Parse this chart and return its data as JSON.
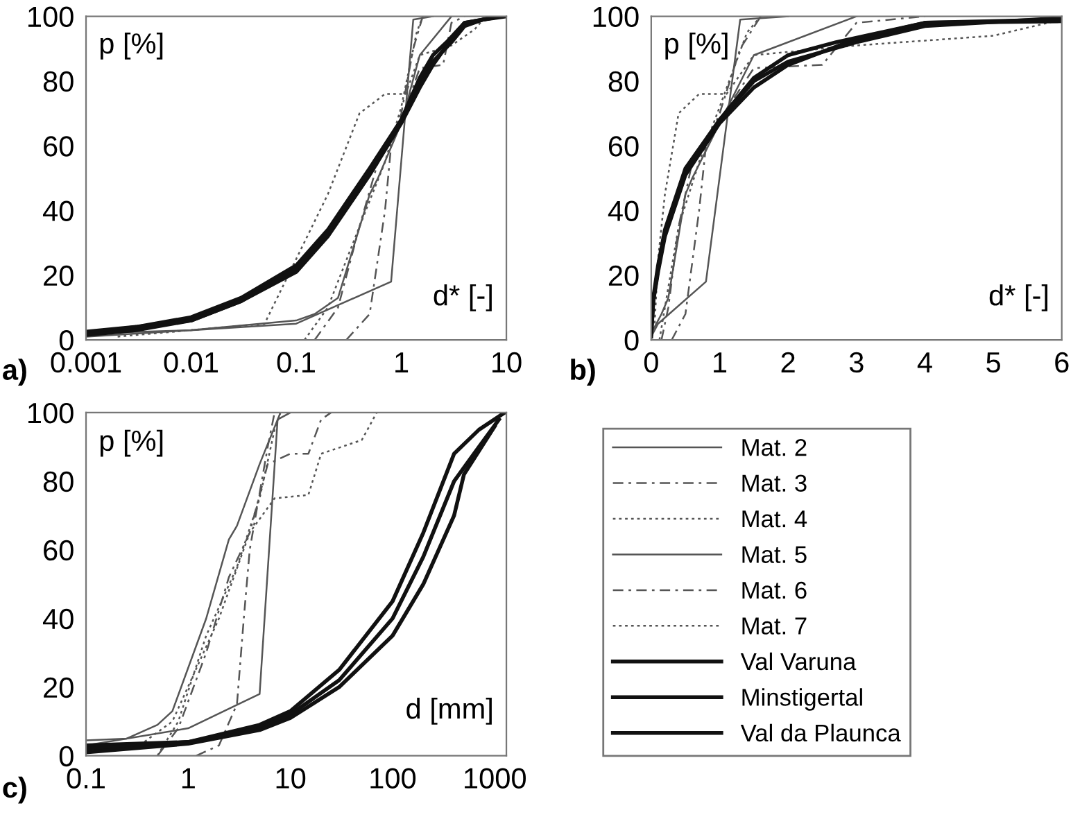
{
  "chart_data": [
    {
      "type": "line",
      "title": "a)",
      "xlabel": "d* [-]",
      "ylabel": "p [%]",
      "log": "x",
      "xlim": [
        0.001,
        10
      ],
      "xticks": [
        {
          "value": 0.001,
          "label": "0.001"
        },
        {
          "value": 0.01,
          "label": "0.01"
        },
        {
          "value": 0.1,
          "label": "0.1"
        },
        {
          "value": 1,
          "label": "1"
        },
        {
          "value": 10,
          "label": "10"
        }
      ],
      "ylim": [
        0,
        100
      ],
      "yticks": [
        0,
        20,
        40,
        60,
        80,
        100
      ],
      "grid": false,
      "marker": "none",
      "series": [
        {
          "color": "#555555",
          "line_style": "solid",
          "x": [
            0.001,
            0.1,
            0.8,
            1.3,
            2
          ],
          "values": [
            1,
            5,
            18,
            99,
            100
          ]
        },
        {
          "color": "#555555",
          "line_style": "dashed",
          "x": [
            0.15,
            0.25,
            0.4,
            0.6,
            1,
            1.5,
            2.5,
            3,
            4
          ],
          "values": [
            0,
            10,
            35,
            55,
            68,
            84,
            85,
            98,
            100
          ]
        },
        {
          "color": "#555555",
          "line_style": "dotted",
          "x": [
            0.12,
            0.2,
            0.4,
            0.7,
            1,
            1.4,
            1.6
          ],
          "values": [
            0,
            10,
            35,
            55,
            72,
            95,
            100
          ]
        },
        {
          "color": "#555555",
          "line_style": "solid",
          "x": [
            0.001,
            0.01,
            0.1,
            0.15,
            0.25,
            0.5,
            0.6,
            1,
            1.5,
            3
          ],
          "values": [
            2,
            3,
            6,
            8,
            13,
            45,
            50,
            67,
            88,
            100
          ]
        },
        {
          "color": "#555555",
          "line_style": "dashed",
          "x": [
            0.3,
            0.5,
            0.7,
            0.8,
            1,
            1.3,
            1.6
          ],
          "values": [
            0,
            8,
            40,
            60,
            70,
            90,
            100
          ]
        },
        {
          "color": "#555555",
          "line_style": "dotted",
          "x": [
            0.002,
            0.05,
            0.1,
            0.2,
            0.4,
            0.7,
            1.1,
            1.5,
            3,
            5,
            6,
            10
          ],
          "values": [
            1,
            5,
            25,
            45,
            70,
            76,
            76,
            88,
            91,
            96,
            99,
            100
          ]
        },
        {
          "color": "#111111",
          "line_style": "solid",
          "x": [
            0.001,
            0.003,
            0.01,
            0.03,
            0.1,
            0.2,
            0.5,
            1,
            1.5,
            2,
            3,
            4,
            6,
            10
          ],
          "values": [
            2.5,
            4,
            7,
            13,
            23,
            34,
            53,
            68,
            80,
            86,
            92,
            97,
            99,
            100
          ]
        },
        {
          "color": "#111111",
          "line_style": "solid",
          "x": [
            0.001,
            0.003,
            0.01,
            0.03,
            0.1,
            0.2,
            0.5,
            1,
            1.5,
            2,
            3,
            4,
            6,
            9
          ],
          "values": [
            2,
            4,
            6,
            12,
            21,
            32,
            51,
            67,
            78,
            85,
            93,
            98,
            99,
            100
          ]
        },
        {
          "color": "#111111",
          "line_style": "solid",
          "x": [
            0.001,
            0.003,
            0.01,
            0.03,
            0.1,
            0.2,
            0.5,
            1,
            1.5,
            2,
            2.7,
            4,
            6,
            8
          ],
          "values": [
            1.5,
            3,
            6,
            12,
            22,
            33,
            52,
            68,
            81,
            88,
            92,
            98,
            99,
            100
          ]
        }
      ]
    },
    {
      "type": "line",
      "title": "b)",
      "xlabel": "d* [-]",
      "ylabel": "p [%]",
      "xlim": [
        0,
        6
      ],
      "xticks": [
        0,
        1,
        2,
        3,
        4,
        5,
        6
      ],
      "ylim": [
        0,
        100
      ],
      "yticks": [
        0,
        20,
        40,
        60,
        80,
        100
      ],
      "grid": false,
      "marker": "none",
      "series": [
        {
          "color": "#555555",
          "line_style": "solid",
          "x": [
            0,
            0.1,
            0.8,
            1.3,
            2
          ],
          "values": [
            1,
            5,
            18,
            99,
            100
          ]
        },
        {
          "color": "#555555",
          "line_style": "dashed",
          "x": [
            0.15,
            0.25,
            0.4,
            0.6,
            1,
            1.5,
            2.5,
            3,
            4
          ],
          "values": [
            0,
            10,
            35,
            55,
            68,
            84,
            85,
            98,
            100
          ]
        },
        {
          "color": "#555555",
          "line_style": "dotted",
          "x": [
            0.12,
            0.2,
            0.4,
            0.7,
            1,
            1.4,
            1.6
          ],
          "values": [
            0,
            10,
            35,
            55,
            72,
            95,
            100
          ]
        },
        {
          "color": "#555555",
          "line_style": "solid",
          "x": [
            0,
            0.1,
            0.15,
            0.25,
            0.5,
            0.6,
            1,
            1.5,
            3
          ],
          "values": [
            2,
            6,
            8,
            13,
            45,
            50,
            67,
            88,
            100
          ]
        },
        {
          "color": "#555555",
          "line_style": "dashed",
          "x": [
            0.3,
            0.5,
            0.7,
            0.8,
            1,
            1.3,
            1.6
          ],
          "values": [
            0,
            8,
            40,
            60,
            70,
            90,
            100
          ]
        },
        {
          "color": "#555555",
          "line_style": "dotted",
          "x": [
            0,
            0.05,
            0.1,
            0.2,
            0.4,
            0.7,
            1.1,
            1.5,
            3,
            5,
            6
          ],
          "values": [
            1.5,
            5,
            25,
            45,
            70,
            76,
            76,
            88,
            91,
            94,
            99
          ]
        },
        {
          "color": "#111111",
          "line_style": "solid",
          "x": [
            0,
            0.03,
            0.1,
            0.2,
            0.5,
            1,
            1.5,
            2,
            3,
            4,
            6
          ],
          "values": [
            3,
            13,
            23,
            34,
            53,
            68,
            80,
            86,
            92,
            97,
            99.5
          ]
        },
        {
          "color": "#111111",
          "line_style": "solid",
          "x": [
            0,
            0.03,
            0.1,
            0.2,
            0.5,
            1,
            1.5,
            2,
            3,
            4,
            6
          ],
          "values": [
            2,
            12,
            21,
            32,
            51,
            67,
            78,
            85,
            93,
            98,
            99
          ]
        },
        {
          "color": "#111111",
          "line_style": "solid",
          "x": [
            0,
            0.03,
            0.1,
            0.2,
            0.5,
            1,
            1.5,
            2,
            2.7,
            4,
            6
          ],
          "values": [
            1,
            12,
            22,
            33,
            52,
            68,
            81,
            88,
            92,
            98,
            98.5
          ]
        }
      ]
    },
    {
      "type": "line",
      "title": "c)",
      "xlabel": "d [mm]",
      "ylabel": "p [%]",
      "log": "x",
      "xlim": [
        0.1,
        1300
      ],
      "xticks": [
        {
          "value": 0.1,
          "label": "0.1"
        },
        1,
        10,
        100,
        1000
      ],
      "ylim": [
        0,
        100
      ],
      "yticks": [
        0,
        20,
        40,
        60,
        80,
        100
      ],
      "grid": false,
      "marker": "none",
      "legend": "right",
      "series": [
        {
          "name": "Mat. 2",
          "color": "#555555",
          "line_style": "solid",
          "x": [
            0.1,
            1,
            5,
            7.5,
            10
          ],
          "values": [
            3,
            8,
            18,
            98,
            100
          ]
        },
        {
          "name": "Mat. 3",
          "color": "#555555",
          "line_style": "dashed",
          "x": [
            0.5,
            0.8,
            1.5,
            2.5,
            4,
            6,
            10,
            15,
            20,
            25
          ],
          "values": [
            0,
            8,
            30,
            52,
            65,
            85,
            88,
            88,
            98,
            100
          ]
        },
        {
          "name": "Mat. 4",
          "color": "#555555",
          "line_style": "dotted",
          "x": [
            0.5,
            0.8,
            1.5,
            3,
            5,
            7,
            8
          ],
          "values": [
            0,
            10,
            35,
            55,
            75,
            95,
            100
          ]
        },
        {
          "name": "Mat. 5",
          "color": "#555555",
          "line_style": "solid",
          "x": [
            0.1,
            0.25,
            0.5,
            0.7,
            1.5,
            2.5,
            3,
            5,
            8
          ],
          "values": [
            4.5,
            5,
            9,
            13,
            40,
            63,
            67,
            85,
            100
          ]
        },
        {
          "name": "Mat. 6",
          "color": "#555555",
          "line_style": "dashed",
          "x": [
            1.2,
            2,
            3,
            3.5,
            4,
            6,
            7
          ],
          "values": [
            0,
            3,
            15,
            40,
            60,
            90,
            100
          ]
        },
        {
          "name": "Mat. 7",
          "color": "#555555",
          "line_style": "dotted",
          "x": [
            0.3,
            0.7,
            2,
            4,
            7,
            15,
            20,
            50,
            70
          ],
          "values": [
            2,
            10,
            40,
            65,
            75,
            76,
            88,
            92,
            100
          ]
        },
        {
          "name": "Val Varuna",
          "color": "#111111",
          "line_style": "solid",
          "x": [
            0.1,
            1,
            5,
            10,
            30,
            100,
            200,
            400,
            700,
            1250
          ],
          "values": [
            3,
            4,
            9,
            13,
            25,
            45,
            65,
            88,
            95,
            100
          ]
        },
        {
          "name": "Minstigertal",
          "color": "#111111",
          "line_style": "solid",
          "x": [
            0.1,
            1,
            5,
            10,
            30,
            100,
            200,
            400,
            700,
            1100
          ],
          "values": [
            2,
            4,
            8,
            12,
            22,
            40,
            58,
            80,
            90,
            98
          ]
        },
        {
          "name": "Val da Plaunca",
          "color": "#111111",
          "line_style": "solid",
          "x": [
            0.1,
            1,
            5,
            10,
            30,
            100,
            200,
            400,
            500,
            1000
          ],
          "values": [
            1,
            3.5,
            7.5,
            11,
            20,
            35,
            50,
            70,
            82,
            96
          ]
        }
      ]
    }
  ]
}
